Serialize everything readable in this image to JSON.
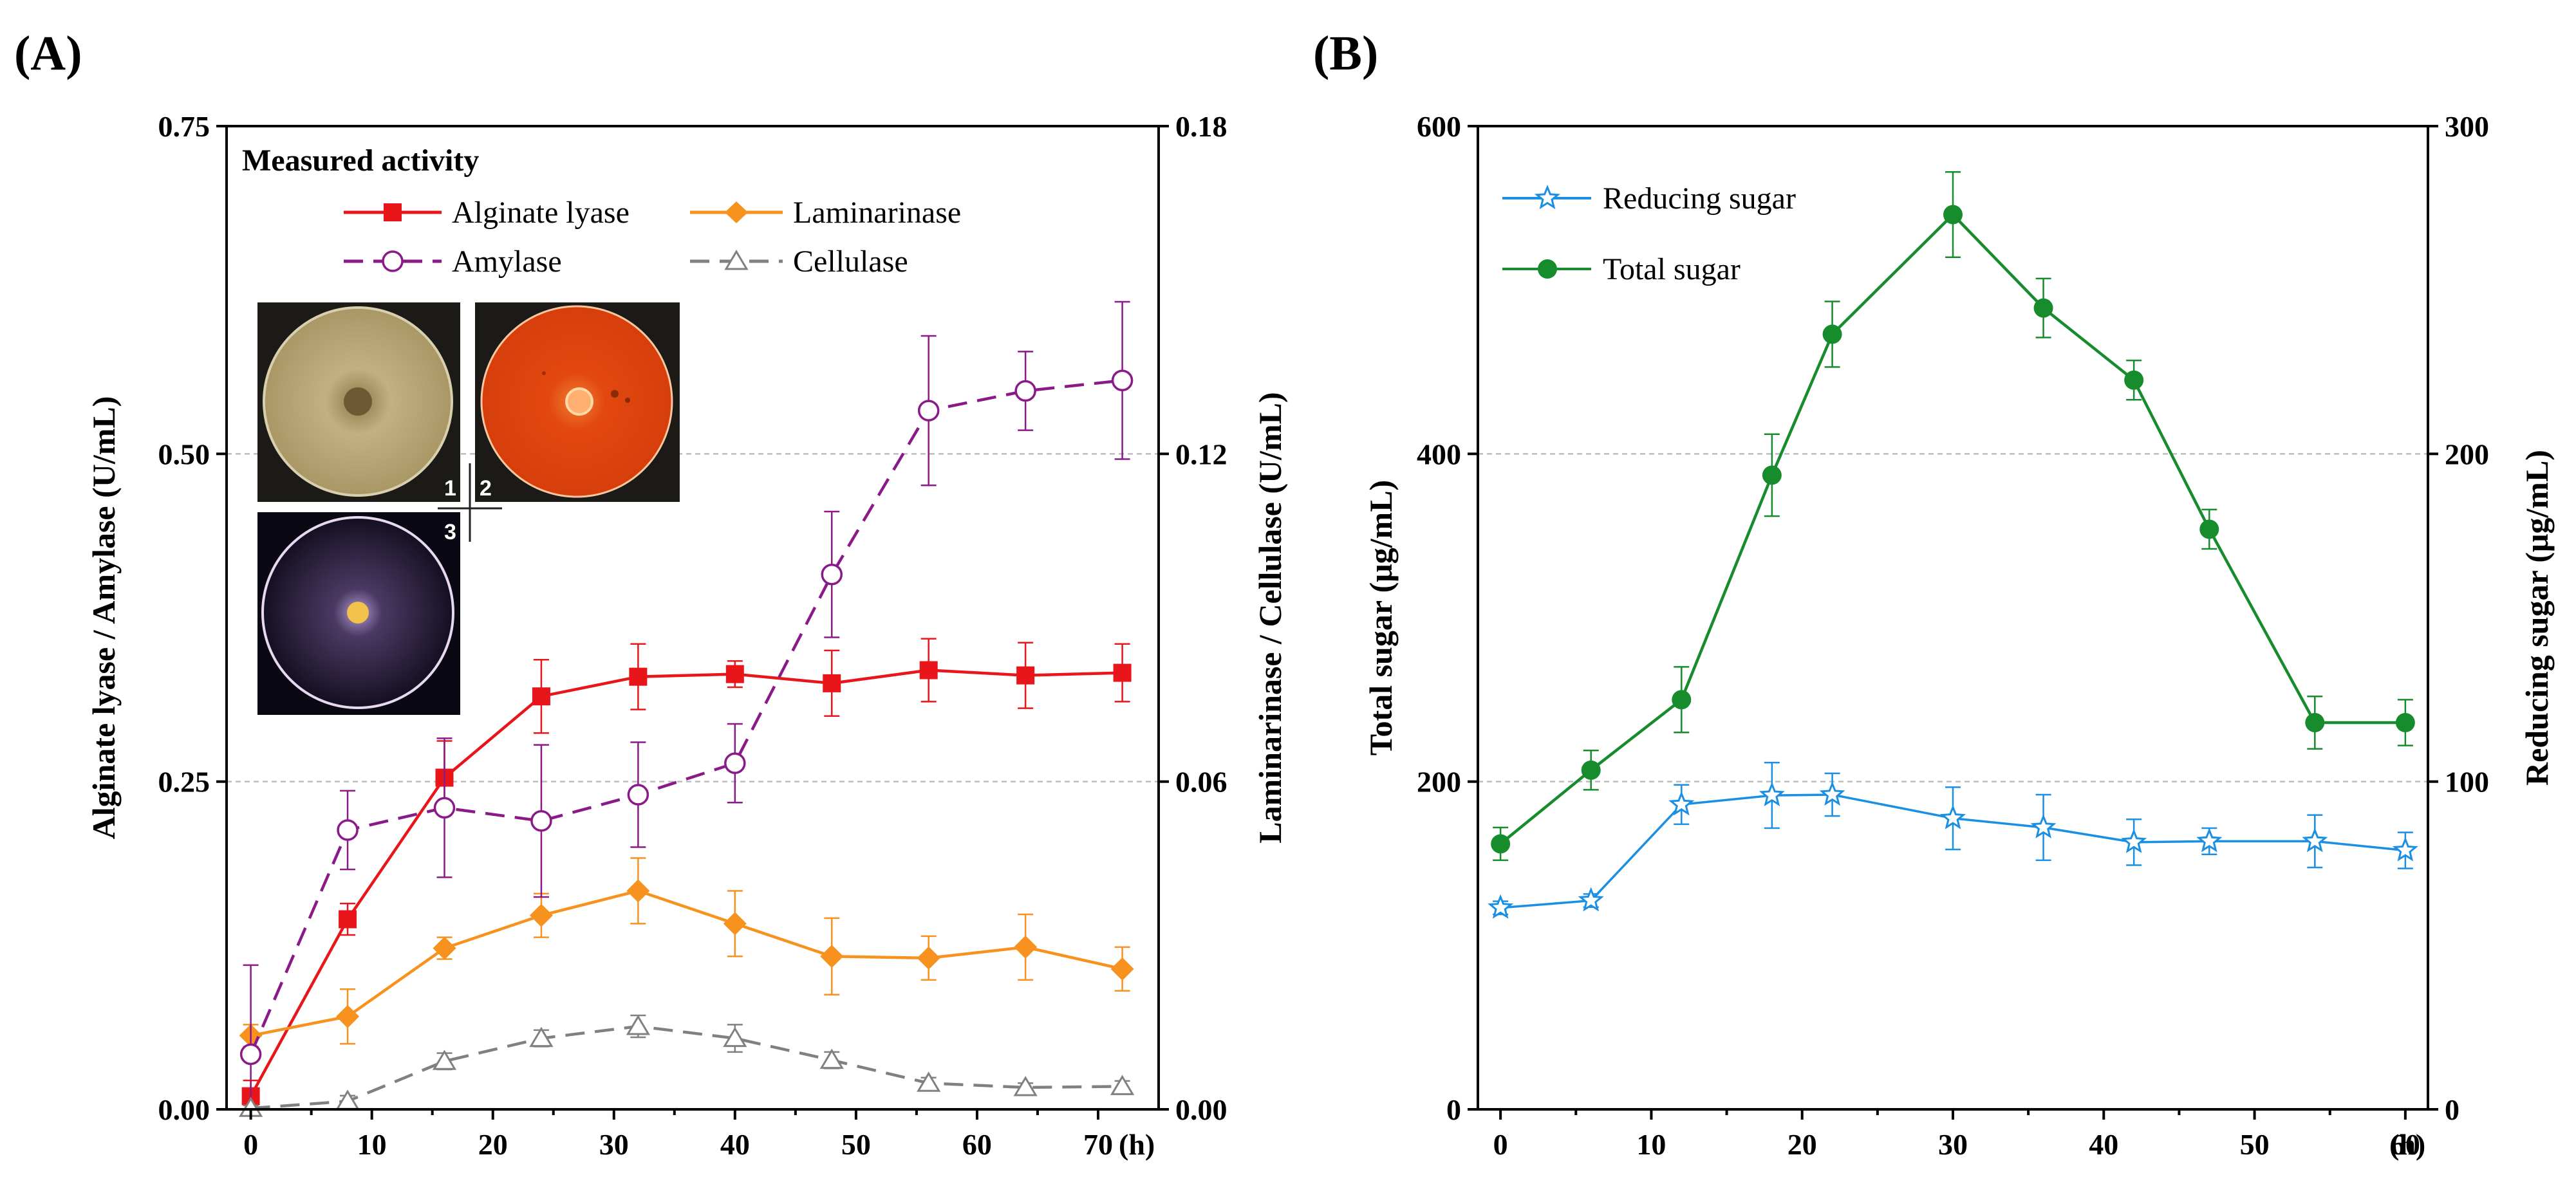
{
  "chart_data": [
    {
      "panel": "(A)",
      "type": "line",
      "x_unit": "(h)",
      "x": [
        0,
        8,
        16,
        24,
        32,
        40,
        48,
        56,
        64,
        72
      ],
      "xlim": [
        -2,
        75
      ],
      "xticks": [
        "0",
        "10",
        "20",
        "30",
        "40",
        "50",
        "60",
        "70"
      ],
      "xtick_values": [
        0,
        10,
        20,
        30,
        40,
        50,
        60,
        70
      ],
      "ylabel_left": "Alginate lyase / Amylase (U/mL)",
      "ylim_left": [
        0,
        0.75
      ],
      "yticks_left": [
        "0.00",
        "0.25",
        "0.50",
        "0.75"
      ],
      "ytick_values_left": [
        0,
        0.25,
        0.5,
        0.75
      ],
      "ylabel_right": "Laminarinase / Cellulase (U/mL)",
      "ylim_right": [
        0,
        0.18
      ],
      "yticks_right": [
        "0.00",
        "0.06",
        "0.12",
        "0.18"
      ],
      "ytick_values_right": [
        0,
        0.06,
        0.12,
        0.18
      ],
      "legend_title": "Measured activity",
      "series": [
        {
          "name": "Alginate lyase",
          "axis": "left",
          "color": "#e8161b",
          "marker": "square",
          "dash": "solid",
          "values": [
            0.01,
            0.145,
            0.253,
            0.315,
            0.33,
            0.332,
            0.325,
            0.335,
            0.331,
            0.333
          ],
          "errors": [
            0.012,
            0.012,
            0.028,
            0.028,
            0.025,
            0.01,
            0.025,
            0.024,
            0.025,
            0.022
          ]
        },
        {
          "name": "Laminarinase",
          "axis": "right",
          "color": "#f7921e",
          "marker": "diamond",
          "dash": "solid",
          "values": [
            0.0135,
            0.017,
            0.0295,
            0.0355,
            0.04,
            0.034,
            0.028,
            0.0277,
            0.0297,
            0.0257
          ],
          "errors": [
            0.002,
            0.005,
            0.002,
            0.004,
            0.006,
            0.006,
            0.007,
            0.004,
            0.006,
            0.004
          ]
        },
        {
          "name": "Amylase",
          "axis": "left",
          "color": "#8b1a89",
          "marker": "circle-open",
          "dash": "dashed",
          "values": [
            0.042,
            0.213,
            0.23,
            0.22,
            0.24,
            0.264,
            0.408,
            0.533,
            0.548,
            0.556
          ],
          "errors": [
            0.068,
            0.03,
            0.053,
            0.058,
            0.04,
            0.03,
            0.048,
            0.057,
            0.03,
            0.06
          ]
        },
        {
          "name": "Cellulase",
          "axis": "right",
          "color": "#808080",
          "marker": "triangle-open",
          "dash": "dashed",
          "values": [
            0.0002,
            0.0015,
            0.0088,
            0.013,
            0.0152,
            0.013,
            0.009,
            0.0048,
            0.004,
            0.0042
          ],
          "errors": [
            0.0005,
            0.001,
            0.0015,
            0.0015,
            0.002,
            0.0025,
            0.0015,
            0.001,
            0.0008,
            0.001
          ]
        }
      ],
      "inset_labels": [
        "1",
        "2",
        "3"
      ],
      "inset_plates": [
        {
          "label": "1",
          "background": "#1c1a17",
          "plate": "#b9a879",
          "halo": "#a38f5e",
          "colony": "#6d5a32"
        },
        {
          "label": "2",
          "background": "#1c1a17",
          "plate": "#e0450f",
          "halo": "#f06a26",
          "colony": "#ffb070"
        },
        {
          "label": "3",
          "background": "#0a0812",
          "plate": "#221a33",
          "halo": "#9b86bd",
          "colony": "#f3c24a"
        }
      ]
    },
    {
      "panel": "(B)",
      "type": "line",
      "x_unit": "(h)",
      "x": [
        0,
        6,
        12,
        18,
        22,
        30,
        36,
        42,
        47,
        54,
        60
      ],
      "xlim": [
        -1.5,
        61.5
      ],
      "xticks": [
        "0",
        "10",
        "20",
        "30",
        "40",
        "50",
        "60"
      ],
      "xtick_values": [
        0,
        10,
        20,
        30,
        40,
        50,
        60
      ],
      "ylabel_left": "Total sugar (μg/mL)",
      "ylim_left": [
        0,
        600
      ],
      "yticks_left": [
        "0",
        "200",
        "400",
        "600"
      ],
      "ytick_values_left": [
        0,
        200,
        400,
        600
      ],
      "ylabel_right": "Reducing sugar (μg/mL)",
      "ylim_right": [
        0,
        300
      ],
      "yticks_right": [
        "0",
        "100",
        "200",
        "300"
      ],
      "ytick_values_right": [
        0,
        100,
        200,
        300
      ],
      "series": [
        {
          "name": "Reducing sugar",
          "axis": "right",
          "color": "#1a8fe3",
          "marker": "star-open",
          "dash": "solid",
          "values": [
            61.5,
            63.7,
            93,
            95.8,
            96,
            88.8,
            86,
            81.5,
            81.8,
            81.8,
            79
          ],
          "errors": [
            2,
            2,
            6,
            10,
            6.5,
            9.5,
            10,
            7,
            4,
            8,
            5.5
          ]
        },
        {
          "name": "Total sugar",
          "axis": "left",
          "color": "#178c2d",
          "marker": "circle",
          "dash": "solid",
          "values": [
            162,
            207,
            250,
            387,
            473,
            546,
            489,
            445,
            354,
            236,
            236
          ],
          "errors": [
            10,
            12,
            20,
            25,
            20,
            26,
            18,
            12,
            12,
            16,
            14
          ]
        }
      ]
    }
  ]
}
